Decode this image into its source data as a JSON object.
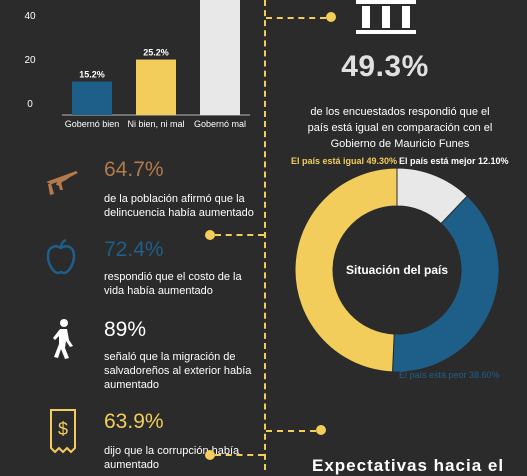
{
  "colors": {
    "background": "#2b2b2b",
    "accent": "#f2cd5c",
    "blue": "#1e5f8a",
    "light": "#e8e8e8",
    "brown": "#b37a4c"
  },
  "bar_chart": {
    "type": "bar",
    "categories": [
      "Gobernó bien",
      "Ni bien, ni mal",
      "Gobernó mal"
    ],
    "values": [
      15.2,
      25.2,
      59.6
    ],
    "value_labels": [
      "15.2%",
      "25.2%",
      ""
    ],
    "bar_colors": [
      "#1e5f8a",
      "#f2cd5c",
      "#e8e8e8"
    ],
    "yticks": [
      "0",
      "20",
      "40"
    ],
    "ylim": [
      0,
      50
    ]
  },
  "stats": [
    {
      "value": "64.7%",
      "color": "#b37a4c",
      "desc": [
        "de la población afirmó que la",
        "delincuencia había aumentado"
      ],
      "icon": "rifle-icon"
    },
    {
      "value": "72.4%",
      "color": "#1e5f8a",
      "desc": [
        "respondió que el costo de la",
        "vida había aumentado"
      ],
      "icon": "apple-icon"
    },
    {
      "value": "89%",
      "color": "#ffffff",
      "desc": [
        "señaló que la migración de",
        "salvadoreños al exterior había",
        "aumentado"
      ],
      "icon": "walking-person-icon"
    },
    {
      "value": "63.9%",
      "color": "#f2cd5c",
      "desc": [
        "dijo que la corrupción había",
        "aumentado"
      ],
      "icon": "receipt-dollar-icon"
    }
  ],
  "right": {
    "big_pct": "49.3%",
    "desc": [
      "de los encuestados respondió que el",
      "país está igual en comparación con el",
      "Gobierno de Mauricio Funes"
    ],
    "icon": "government-building-icon",
    "footer_title": "Expectativas hacia el"
  },
  "chart_data": [
    {
      "type": "bar",
      "categories": [
        "Gobernó bien",
        "Ni bien, ni mal",
        "Gobernó mal"
      ],
      "values": [
        15.2,
        25.2,
        59.6
      ],
      "ylim": [
        0,
        50
      ],
      "yticks": [
        0,
        20,
        40
      ]
    },
    {
      "type": "pie",
      "title": "Situación del país",
      "labels": [
        "El país está igual",
        "El país está mejor",
        "El país está peor"
      ],
      "values": [
        49.3,
        12.1,
        38.6
      ],
      "label_texts": [
        "El país está igual 49.30%",
        "El país está mejor 12.10%",
        "El país está peor 38.60%"
      ],
      "colors": [
        "#f2cd5c",
        "#e8e8e8",
        "#1e5f8a"
      ]
    }
  ]
}
